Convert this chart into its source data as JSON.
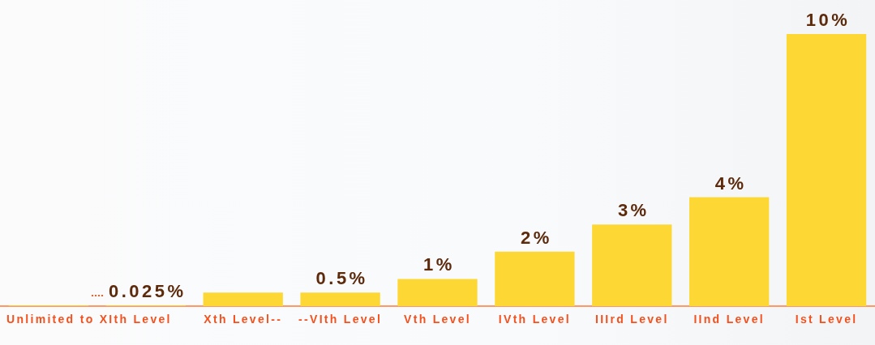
{
  "chart_data": {
    "type": "bar",
    "categories": [
      "Unlimited to XIth Level",
      null,
      "Xth Level--",
      "--VIth Level",
      "Vth Level",
      "IVth Level",
      "IIIrd Level",
      "IInd Level",
      "Ist Level"
    ],
    "values": [
      0.025,
      0.025,
      0.5,
      0.5,
      1,
      2,
      3,
      4,
      10
    ],
    "value_labels": [
      null,
      "0.025%",
      null,
      "0.5%",
      "1%",
      "2%",
      "3%",
      "4%",
      "10%"
    ],
    "color": "#fdd835",
    "tick_labels": "x"
  }
}
